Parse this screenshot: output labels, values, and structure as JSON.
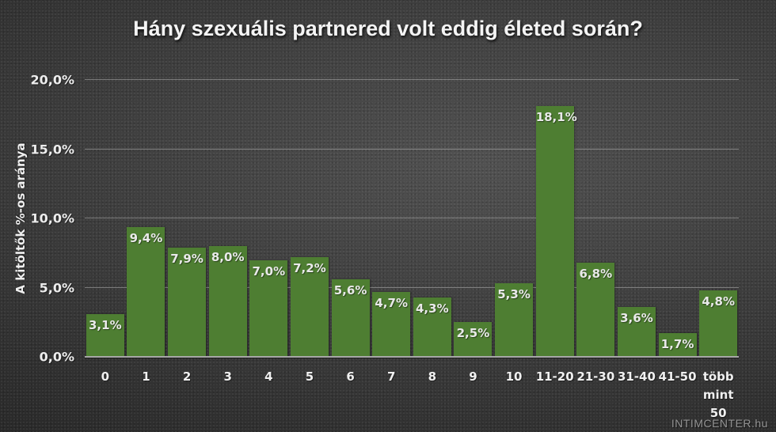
{
  "watermark": "INTIMCENTER.hu",
  "chart_data": {
    "type": "bar",
    "title": "Hány szexuális partnered volt eddig életed során?",
    "xlabel": "",
    "ylabel": "A kitöltők %-os aránya",
    "categories": [
      "0",
      "1",
      "2",
      "3",
      "4",
      "5",
      "6",
      "7",
      "8",
      "9",
      "10",
      "11-20",
      "21-30",
      "31-40",
      "41-50",
      "több mint 50"
    ],
    "values": [
      3.1,
      9.4,
      7.9,
      8.0,
      7.0,
      7.2,
      5.6,
      4.7,
      4.3,
      2.5,
      5.3,
      18.1,
      6.8,
      3.6,
      1.7,
      4.8
    ],
    "bar_labels": [
      "3,1%",
      "9,4%",
      "7,9%",
      "8,0%",
      "7,0%",
      "7,2%",
      "5,6%",
      "4,7%",
      "4,3%",
      "2,5%",
      "5,3%",
      "18,1%",
      "6,8%",
      "3,6%",
      "1,7%",
      "4,8%"
    ],
    "ylim": [
      0,
      20
    ],
    "yticks": [
      {
        "value": 0,
        "label": "0,0%"
      },
      {
        "value": 5,
        "label": "5,0%"
      },
      {
        "value": 10,
        "label": "10,0%"
      },
      {
        "value": 15,
        "label": "15,0%"
      },
      {
        "value": 20,
        "label": "20,0%"
      }
    ],
    "grid": true,
    "legend": "none",
    "colors": {
      "bar": "#4e7e32",
      "gridline": "rgba(215,215,215,0.42)",
      "axis_line": "#a8a8a8",
      "label_text": "#e9e9e9",
      "background_center": "#515151",
      "background_edge": "#232323"
    }
  }
}
